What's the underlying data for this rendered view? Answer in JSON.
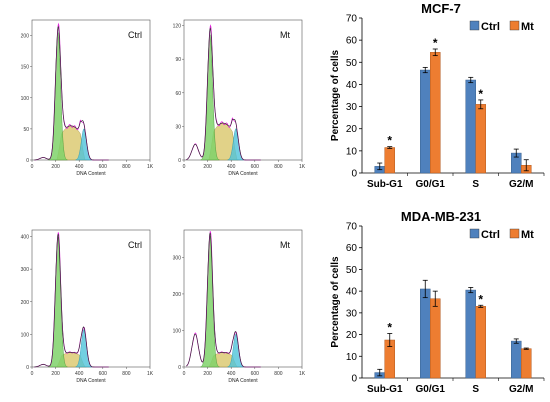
{
  "chart_data": [
    {
      "type": "area",
      "id": "hist-mcf7-ctrl",
      "title": "Ctrl",
      "xlabel": "DNA Content",
      "xticks": [
        "0",
        "200",
        "400",
        "600",
        "800",
        "1K"
      ],
      "yticks": [
        "0",
        "50",
        "100",
        "150",
        "200"
      ],
      "xlim": [
        0,
        1000
      ],
      "ylim": [
        0,
        225
      ],
      "peaks": {
        "g1": 220,
        "g1_height": 205,
        "g2": 440,
        "g2_height": 50,
        "subg1_height": 4,
        "s_height": 55
      }
    },
    {
      "type": "area",
      "id": "hist-mcf7-mt",
      "title": "Mt",
      "xlabel": "DNA Content",
      "xticks": [
        "0",
        "200",
        "400",
        "600",
        "800",
        "1K"
      ],
      "yticks": [
        "0",
        "30",
        "60",
        "90",
        "120"
      ],
      "xlim": [
        0,
        1000
      ],
      "ylim": [
        0,
        125
      ],
      "peaks": {
        "g1": 220,
        "g1_height": 112,
        "g2": 440,
        "g2_height": 28,
        "subg1_height": 14,
        "s_height": 33
      }
    },
    {
      "type": "area",
      "id": "hist-mda-ctrl",
      "title": "Ctrl",
      "xlabel": "DNA Content",
      "xticks": [
        "0",
        "200",
        "400",
        "600",
        "800",
        "1K"
      ],
      "yticks": [
        "0",
        "100",
        "200",
        "300",
        "400"
      ],
      "xlim": [
        0,
        1000
      ],
      "ylim": [
        0,
        420
      ],
      "peaks": {
        "g1": 220,
        "g1_height": 400,
        "g2": 440,
        "g2_height": 115,
        "subg1_height": 8,
        "s_height": 45
      }
    },
    {
      "type": "area",
      "id": "hist-mda-mt",
      "title": "Mt",
      "xlabel": "DNA Content",
      "xticks": [
        "0",
        "200",
        "400",
        "600",
        "800",
        "1K"
      ],
      "yticks": [
        "0",
        "100",
        "200",
        "300"
      ],
      "xlim": [
        0,
        1000
      ],
      "ylim": [
        0,
        375
      ],
      "peaks": {
        "g1": 220,
        "g1_height": 360,
        "g2": 440,
        "g2_height": 90,
        "subg1_height": 90,
        "s_height": 40
      }
    },
    {
      "type": "bar",
      "id": "bar-mcf7",
      "title": "MCF-7",
      "ylabel": "Percentage of cells",
      "categories": [
        "Sub-G1",
        "G0/G1",
        "S",
        "G2/M"
      ],
      "ylim": [
        0,
        70
      ],
      "yticks": [
        "0",
        "10",
        "20",
        "30",
        "40",
        "50",
        "60",
        "70"
      ],
      "series": [
        {
          "name": "Ctrl",
          "values": [
            3,
            46.5,
            42,
            9
          ],
          "errors": [
            1.5,
            1.2,
            1.2,
            1.8
          ]
        },
        {
          "name": "Mt",
          "values": [
            11.5,
            54.5,
            31,
            3.5
          ],
          "errors": [
            0.4,
            1.5,
            2,
            2.5
          ]
        }
      ],
      "significant": [
        0,
        1,
        2
      ]
    },
    {
      "type": "bar",
      "id": "bar-mda",
      "title": "MDA-MB-231",
      "ylabel": "Percentage of cells",
      "categories": [
        "Sub-G1",
        "G0/G1",
        "S",
        "G2/M"
      ],
      "ylim": [
        0,
        70
      ],
      "yticks": [
        "0",
        "10",
        "20",
        "30",
        "40",
        "50",
        "60",
        "70"
      ],
      "series": [
        {
          "name": "Ctrl",
          "values": [
            2.5,
            41,
            40.5,
            17
          ],
          "errors": [
            1.5,
            4,
            1.2,
            1
          ]
        },
        {
          "name": "Mt",
          "values": [
            17.5,
            36.5,
            33,
            13.5
          ],
          "errors": [
            3,
            3.5,
            0.5,
            0.3
          ]
        }
      ],
      "significant": [
        0,
        2
      ]
    }
  ],
  "colors": {
    "ctrl": "#4f81bd",
    "mt": "#ed7d31",
    "g1_fill": "#7fd26a",
    "s_fill": "#d9c76a",
    "g2_fill": "#4fc3d9",
    "curve": "#e020d8",
    "envelope": "#222222"
  },
  "significance_marker": "*"
}
